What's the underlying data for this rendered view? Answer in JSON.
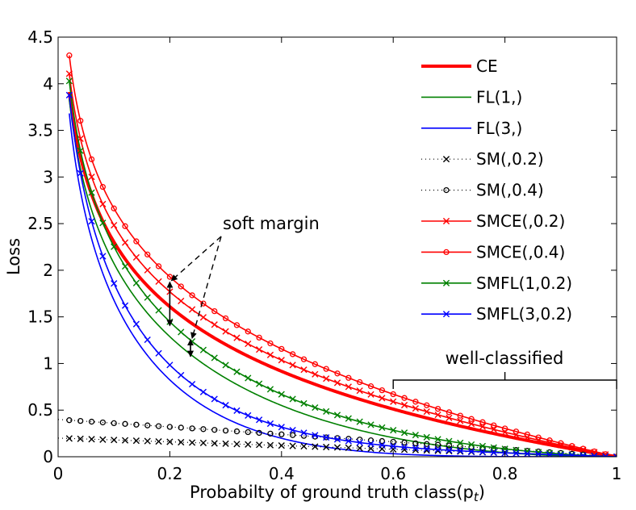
{
  "chart_data": {
    "type": "line",
    "title": "",
    "xlabel": "Probabilty of ground truth class",
    "xlabel_math": "(p",
    "xlabel_sub": "t",
    "xlabel_close": ")",
    "ylabel": "Loss",
    "xlim": [
      0,
      1
    ],
    "ylim": [
      0,
      4.5
    ],
    "xticks": [
      0,
      0.2,
      0.4,
      0.6,
      0.8,
      1
    ],
    "xtick_labels": [
      "0",
      "0.2",
      "0.4",
      "0.6",
      "0.8",
      "1"
    ],
    "yticks": [
      0,
      0.5,
      1,
      1.5,
      2,
      2.5,
      3,
      3.5,
      4,
      4.5
    ],
    "ytick_labels": [
      "0",
      "0.5",
      "1",
      "1.5",
      "2",
      "2.5",
      "3",
      "3.5",
      "4",
      "4.5"
    ],
    "grid": false,
    "legend_position": "right",
    "series": [
      {
        "name": "CE",
        "formula": "ce",
        "gamma": 0,
        "margin": 0,
        "color": "#ff0000",
        "width": 4,
        "dash": "",
        "marker": "none"
      },
      {
        "name": "FL(1,)",
        "formula": "fl",
        "gamma": 1,
        "margin": 0,
        "color": "#008000",
        "width": 1.6,
        "dash": "",
        "marker": "none"
      },
      {
        "name": "FL(3,)",
        "formula": "fl",
        "gamma": 3,
        "margin": 0,
        "color": "#0000ff",
        "width": 1.6,
        "dash": "",
        "marker": "none"
      },
      {
        "name": "SM(,0.2)",
        "formula": "sm",
        "gamma": 0,
        "margin": 0.2,
        "color": "#000000",
        "width": 1.2,
        "dash": "1,4",
        "marker": "x"
      },
      {
        "name": "SM(,0.4)",
        "formula": "sm",
        "gamma": 0,
        "margin": 0.4,
        "color": "#000000",
        "width": 1.2,
        "dash": "1,4",
        "marker": "o"
      },
      {
        "name": "SMCE(,0.2)",
        "formula": "smfl",
        "gamma": 0,
        "margin": 0.2,
        "color": "#ff0000",
        "width": 1.6,
        "dash": "",
        "marker": "x"
      },
      {
        "name": "SMCE(,0.4)",
        "formula": "smfl",
        "gamma": 0,
        "margin": 0.4,
        "color": "#ff0000",
        "width": 1.6,
        "dash": "",
        "marker": "o"
      },
      {
        "name": "SMFL(1,0.2)",
        "formula": "smfl",
        "gamma": 1,
        "margin": 0.2,
        "color": "#008000",
        "width": 1.6,
        "dash": "",
        "marker": "x"
      },
      {
        "name": "SMFL(3,0.2)",
        "formula": "smfl",
        "gamma": 3,
        "margin": 0.2,
        "color": "#0000ff",
        "width": 1.6,
        "dash": "",
        "marker": "x"
      }
    ],
    "annotations": [
      {
        "text": "soft margin",
        "targets_x": [
          0.2,
          0.24
        ]
      },
      {
        "text": "well-classified",
        "range_x": [
          0.6,
          1.0
        ]
      }
    ]
  }
}
